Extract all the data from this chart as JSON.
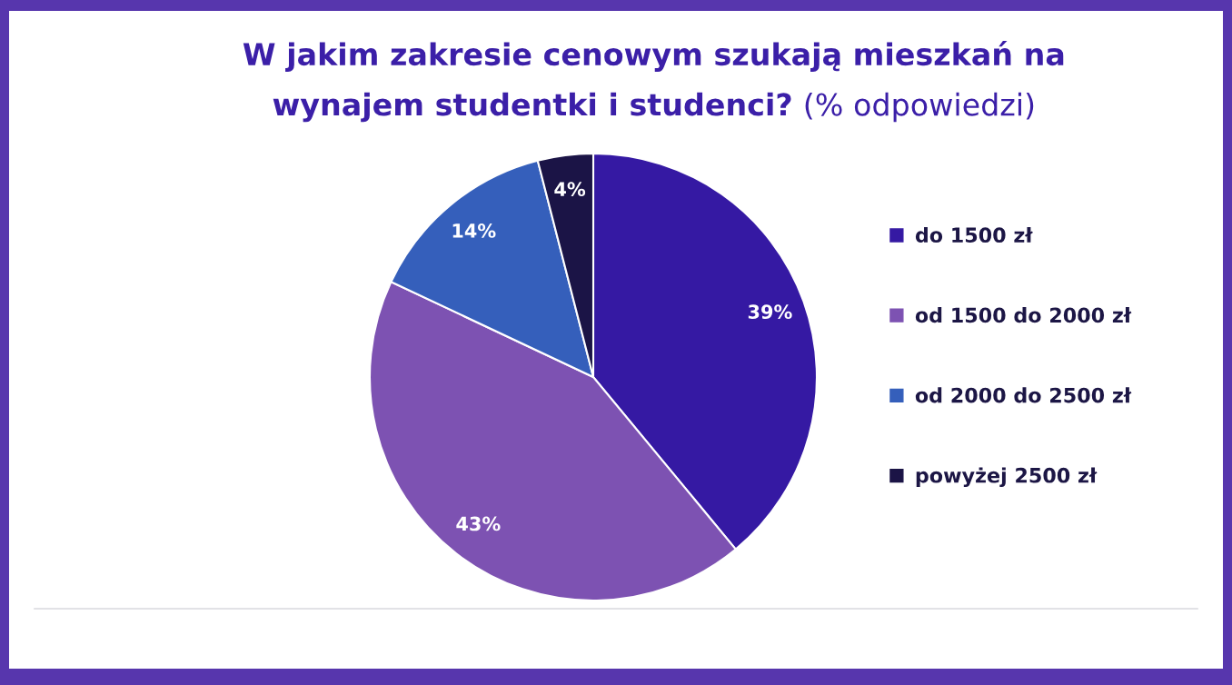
{
  "chart_data": {
    "type": "pie",
    "title": "W jakim zakresie cenowym szukają mieszkań na wynajem studentki i studenci? (% odpowiedzi)",
    "categories": [
      "do 1500 zł",
      "od 1500 do 2000 zł",
      "od 2000 do 2500 zł",
      "powyżej 2500 zł"
    ],
    "values": [
      39,
      43,
      14,
      4
    ],
    "colors": [
      "#3519a3",
      "#7d52b2",
      "#355fbb",
      "#1b1446"
    ],
    "value_labels": [
      "39%",
      "43%",
      "14%",
      "4%"
    ],
    "legend": "right"
  }
}
